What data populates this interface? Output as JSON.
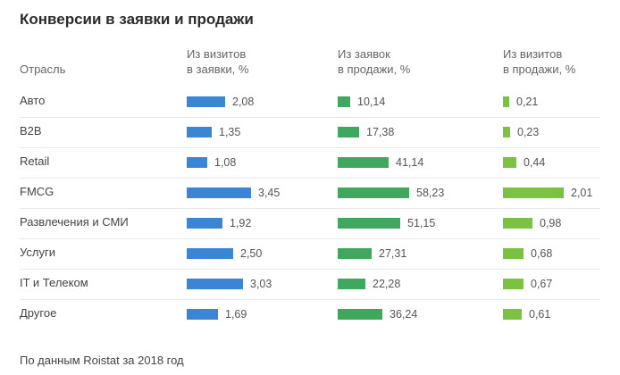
{
  "title": "Конверсии в заявки и продажи",
  "headers": {
    "industry": "Отрасль",
    "col1_line1": "Из визитов",
    "col1_line2": "в заявки, %",
    "col2_line1": "Из заявок",
    "col2_line2": "в продажи, %",
    "col3_line1": "Из визитов",
    "col3_line2": "в продажи, %"
  },
  "footer": "По данным Roistat за 2018 год",
  "colors": {
    "col1": "#3b86d4",
    "col2": "#3fa75e",
    "col3": "#7cc242"
  },
  "chart_data": {
    "type": "table",
    "title": "Конверсии в заявки и продажи",
    "categories": [
      "Авто",
      "B2B",
      "Retail",
      "FMCG",
      "Развлечения и СМИ",
      "Услуги",
      "IT и Телеком",
      "Другое"
    ],
    "series": [
      {
        "name": "Из визитов в заявки, %",
        "values": [
          2.08,
          1.35,
          1.08,
          3.45,
          1.92,
          2.5,
          3.03,
          1.69
        ],
        "labels": [
          "2,08",
          "1,35",
          "1,08",
          "3,45",
          "1,92",
          "2,50",
          "3,03",
          "1,69"
        ]
      },
      {
        "name": "Из заявок в продажи, %",
        "values": [
          10.14,
          17.38,
          41.14,
          58.23,
          51.15,
          27.31,
          22.28,
          36.24
        ],
        "labels": [
          "10,14",
          "17,38",
          "41,14",
          "58,23",
          "51,15",
          "27,31",
          "22,28",
          "36,24"
        ]
      },
      {
        "name": "Из визитов в продажи, %",
        "values": [
          0.21,
          0.23,
          0.44,
          2.01,
          0.98,
          0.68,
          0.67,
          0.61
        ],
        "labels": [
          "0,21",
          "0,23",
          "0,44",
          "2,01",
          "0,98",
          "0,68",
          "0,67",
          "0,61"
        ]
      }
    ]
  }
}
